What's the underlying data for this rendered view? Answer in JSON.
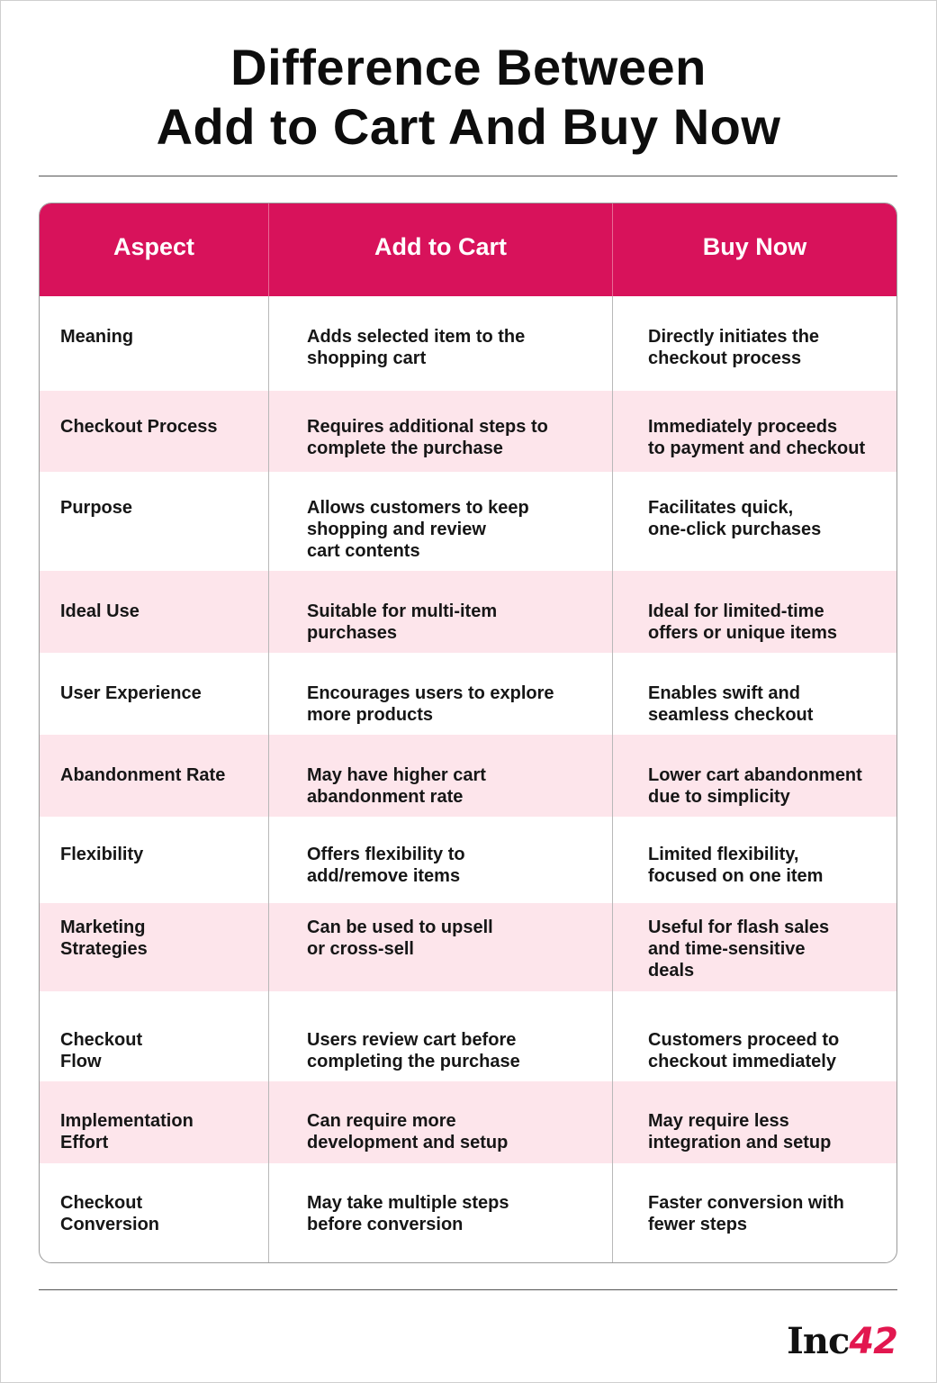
{
  "header": {
    "title_lines": [
      "Difference Between",
      "Add to Cart And Buy Now"
    ]
  },
  "table": {
    "columns": [
      "Aspect",
      "Add to Cart",
      "Buy Now"
    ],
    "rows": [
      [
        "Meaning",
        "Adds selected item to the\nshopping cart",
        "Directly initiates the\ncheckout process"
      ],
      [
        "Checkout Process",
        "Requires additional steps to\ncomplete the purchase",
        "Immediately proceeds\nto payment and checkout"
      ],
      [
        "Purpose",
        "Allows customers to keep\nshopping and review\ncart contents",
        "Facilitates quick,\none-click purchases"
      ],
      [
        "Ideal Use",
        "Suitable for multi-item\npurchases",
        "Ideal for limited-time\noffers or unique items"
      ],
      [
        "User Experience",
        "Encourages users to explore\nmore products",
        "Enables swift and\nseamless checkout"
      ],
      [
        "Abandonment Rate",
        "May have higher cart\nabandonment rate",
        "Lower cart abandonment\ndue to simplicity"
      ],
      [
        "Flexibility",
        "Offers flexibility to\nadd/remove items",
        "Limited flexibility,\nfocused on one item"
      ],
      [
        "Marketing\nStrategies",
        "Can be used to upsell\nor cross-sell",
        "Useful for flash sales\nand time-sensitive\ndeals"
      ],
      [
        "Checkout\nFlow",
        "Users review cart before\ncompleting the purchase",
        "Customers proceed to\ncheckout immediately"
      ],
      [
        "Implementation\nEffort",
        "Can require more\ndevelopment and setup",
        "May require less\nintegration and setup"
      ],
      [
        "Checkout\nConversion",
        "May take multiple steps\nbefore conversion",
        "Faster conversion with\nfewer steps"
      ]
    ]
  },
  "footer": {
    "brand": [
      "Inc",
      "42"
    ]
  }
}
